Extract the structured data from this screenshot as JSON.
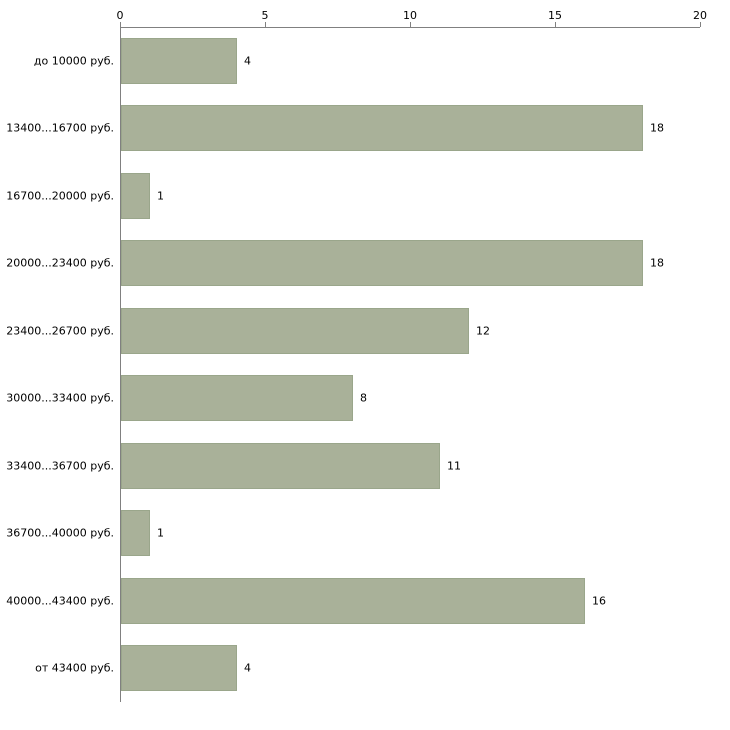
{
  "chart_data": {
    "type": "bar",
    "orientation": "horizontal",
    "title": "",
    "xlabel": "",
    "ylabel": "",
    "categories": [
      "до 10000 руб.",
      "13400...16700 руб.",
      "16700...20000 руб.",
      "20000...23400 руб.",
      "23400...26700 руб.",
      "30000...33400 руб.",
      "33400...36700 руб.",
      "36700...40000 руб.",
      "40000...43400 руб.",
      "от 43400 руб."
    ],
    "values": [
      4,
      18,
      1,
      18,
      12,
      8,
      11,
      1,
      16,
      4
    ],
    "xlim": [
      0,
      20
    ],
    "xticks": [
      "0",
      "5",
      "10",
      "15",
      "20"
    ],
    "grid": false,
    "legend": "none",
    "value_labels": true,
    "colors": {
      "bar_fill": "#a9b199",
      "bar_border": "#9aa68b",
      "axis": "#808080",
      "text": "#000000",
      "background": "#ffffff"
    }
  }
}
